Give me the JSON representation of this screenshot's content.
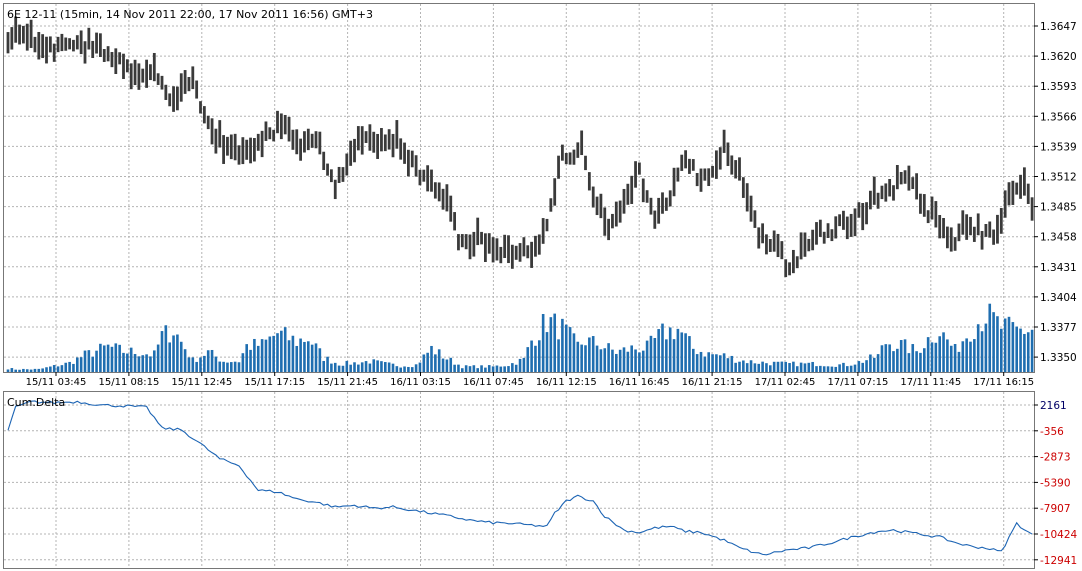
{
  "header": {
    "title": "6E 12-11 (15min, 14 Nov 2011 22:00, 17 Nov 2011 16:56) GMT+3"
  },
  "colors": {
    "price": "#3a3a3a",
    "volume": "#1f6eb0",
    "delta": "#1c64b4",
    "negative": "#cc0000",
    "positive": "#000066",
    "grid": "#b4b4b4"
  },
  "chart_data": [
    {
      "type": "bar",
      "subtype": "ohlc-bars-with-volume",
      "title": "6E 12-11 (15min, 14 Nov 2011 22:00, 17 Nov 2011 16:56) GMT+3",
      "y_tick_labels": [
        "1.3647",
        "1.3620",
        "1.3593",
        "1.3566",
        "1.3539",
        "1.3512",
        "1.3485",
        "1.3458",
        "1.3431",
        "1.3404",
        "1.3377",
        "1.3350"
      ],
      "x_tick_labels": [
        "15/11 03:45",
        "15/11 08:15",
        "15/11 12:45",
        "15/11 17:15",
        "15/11 21:45",
        "16/11 03:15",
        "16/11 07:45",
        "16/11 12:15",
        "16/11 16:45",
        "16/11 21:15",
        "17/11 02:45",
        "17/11 07:15",
        "17/11 11:45",
        "17/11 16:15"
      ],
      "ylim": [
        1.3341,
        1.3657
      ],
      "grid": true,
      "price_path": [
        [
          0,
          1.3629
        ],
        [
          4,
          1.3637
        ],
        [
          10,
          1.3624
        ],
        [
          20,
          1.3631
        ],
        [
          28,
          1.3616
        ],
        [
          33,
          1.3598
        ],
        [
          38,
          1.3608
        ],
        [
          43,
          1.3578
        ],
        [
          48,
          1.3598
        ],
        [
          53,
          1.3552
        ],
        [
          58,
          1.3538
        ],
        [
          63,
          1.3528
        ],
        [
          67,
          1.3546
        ],
        [
          72,
          1.3558
        ],
        [
          76,
          1.3537
        ],
        [
          80,
          1.3547
        ],
        [
          85,
          1.3504
        ],
        [
          88,
          1.3524
        ],
        [
          92,
          1.3545
        ],
        [
          97,
          1.354
        ],
        [
          101,
          1.3542
        ],
        [
          106,
          1.3515
        ],
        [
          110,
          1.351
        ],
        [
          114,
          1.3485
        ],
        [
          118,
          1.3452
        ],
        [
          122,
          1.3455
        ],
        [
          127,
          1.3447
        ],
        [
          132,
          1.344
        ],
        [
          137,
          1.3447
        ],
        [
          140,
          1.347
        ],
        [
          144,
          1.3528
        ],
        [
          149,
          1.3537
        ],
        [
          152,
          1.349
        ],
        [
          156,
          1.346
        ],
        [
          160,
          1.349
        ],
        [
          164,
          1.3513
        ],
        [
          168,
          1.3478
        ],
        [
          172,
          1.3495
        ],
        [
          176,
          1.3531
        ],
        [
          180,
          1.3505
        ],
        [
          186,
          1.3536
        ],
        [
          190,
          1.3513
        ],
        [
          194,
          1.347
        ],
        [
          198,
          1.3452
        ],
        [
          202,
          1.3434
        ],
        [
          206,
          1.344
        ],
        [
          210,
          1.3459
        ],
        [
          214,
          1.3462
        ],
        [
          218,
          1.3472
        ],
        [
          222,
          1.3478
        ],
        [
          226,
          1.3494
        ],
        [
          230,
          1.3503
        ],
        [
          234,
          1.3509
        ],
        [
          238,
          1.3485
        ],
        [
          242,
          1.3465
        ],
        [
          246,
          1.345
        ],
        [
          248,
          1.3472
        ],
        [
          252,
          1.3462
        ],
        [
          256,
          1.3458
        ],
        [
          260,
          1.3495
        ],
        [
          264,
          1.3506
        ],
        [
          266,
          1.3478
        ]
      ],
      "volume_path": [
        [
          0,
          4
        ],
        [
          2,
          3
        ],
        [
          8,
          3
        ],
        [
          16,
          10
        ],
        [
          20,
          19
        ],
        [
          26,
          28
        ],
        [
          30,
          23
        ],
        [
          34,
          22
        ],
        [
          38,
          19
        ],
        [
          40,
          40
        ],
        [
          43,
          47
        ],
        [
          48,
          13
        ],
        [
          52,
          22
        ],
        [
          56,
          12
        ],
        [
          60,
          12
        ],
        [
          62,
          29
        ],
        [
          66,
          30
        ],
        [
          70,
          43
        ],
        [
          75,
          34
        ],
        [
          78,
          38
        ],
        [
          82,
          16
        ],
        [
          86,
          9
        ],
        [
          90,
          10
        ],
        [
          94,
          12
        ],
        [
          98,
          9
        ],
        [
          102,
          7
        ],
        [
          106,
          8
        ],
        [
          110,
          26
        ],
        [
          114,
          15
        ],
        [
          118,
          6
        ],
        [
          122,
          6
        ],
        [
          126,
          6
        ],
        [
          130,
          8
        ],
        [
          134,
          14
        ],
        [
          136,
          35
        ],
        [
          140,
          57
        ],
        [
          144,
          48
        ],
        [
          148,
          29
        ],
        [
          150,
          35
        ],
        [
          154,
          30
        ],
        [
          158,
          22
        ],
        [
          162,
          26
        ],
        [
          166,
          27
        ],
        [
          170,
          43
        ],
        [
          174,
          48
        ],
        [
          178,
          26
        ],
        [
          182,
          20
        ],
        [
          186,
          18
        ],
        [
          190,
          13
        ],
        [
          194,
          11
        ],
        [
          198,
          10
        ],
        [
          202,
          9
        ],
        [
          206,
          9
        ],
        [
          210,
          9
        ],
        [
          214,
          8
        ],
        [
          218,
          8
        ],
        [
          222,
          12
        ],
        [
          226,
          18
        ],
        [
          228,
          33
        ],
        [
          232,
          30
        ],
        [
          236,
          23
        ],
        [
          240,
          41
        ],
        [
          242,
          46
        ],
        [
          246,
          24
        ],
        [
          250,
          48
        ],
        [
          254,
          64
        ],
        [
          258,
          50
        ],
        [
          262,
          46
        ],
        [
          266,
          47
        ]
      ],
      "y_scale_values": [
        1.3647,
        1.362,
        1.3593,
        1.3566,
        1.3539,
        1.3512,
        1.3485,
        1.3458,
        1.3431,
        1.3404,
        1.3377,
        1.335
      ]
    },
    {
      "type": "line",
      "title": "Cum.Delta",
      "series": [
        {
          "name": "Cum.Delta"
        }
      ],
      "y_tick_labels": [
        "2161",
        "-356",
        "-2873",
        "-5390",
        "-7907",
        "-10424",
        "-12941"
      ],
      "y_ticks": [
        2161,
        -356,
        -2873,
        -5390,
        -7907,
        -10424,
        -12941
      ],
      "ylim": [
        -13900,
        3800
      ],
      "grid": true,
      "values_path": [
        [
          0,
          -254
        ],
        [
          2,
          1934
        ],
        [
          6,
          2480
        ],
        [
          12,
          2388
        ],
        [
          18,
          2480
        ],
        [
          24,
          2161
        ],
        [
          30,
          2075
        ],
        [
          36,
          1934
        ],
        [
          40,
          -105
        ],
        [
          45,
          -257
        ],
        [
          50,
          -1618
        ],
        [
          55,
          -3089
        ],
        [
          60,
          -3746
        ],
        [
          65,
          -6157
        ],
        [
          70,
          -6309
        ],
        [
          75,
          -7003
        ],
        [
          80,
          -7327
        ],
        [
          85,
          -7790
        ],
        [
          90,
          -7634
        ],
        [
          95,
          -7907
        ],
        [
          100,
          -7790
        ],
        [
          105,
          -8097
        ],
        [
          110,
          -8401
        ],
        [
          115,
          -8706
        ],
        [
          120,
          -9081
        ],
        [
          125,
          -9306
        ],
        [
          130,
          -9383
        ],
        [
          135,
          -9534
        ],
        [
          140,
          -9684
        ],
        [
          142,
          -8401
        ],
        [
          145,
          -7202
        ],
        [
          148,
          -6733
        ],
        [
          152,
          -7202
        ],
        [
          155,
          -8706
        ],
        [
          160,
          -10049
        ],
        [
          164,
          -10275
        ],
        [
          168,
          -9836
        ],
        [
          172,
          -9684
        ],
        [
          176,
          -10161
        ],
        [
          180,
          -10275
        ],
        [
          186,
          -11030
        ],
        [
          190,
          -11780
        ],
        [
          196,
          -12468
        ],
        [
          202,
          -12010
        ],
        [
          208,
          -11780
        ],
        [
          214,
          -11258
        ],
        [
          220,
          -10649
        ],
        [
          226,
          -10161
        ],
        [
          230,
          -10049
        ],
        [
          234,
          -10275
        ],
        [
          238,
          -10501
        ],
        [
          242,
          -10724
        ],
        [
          246,
          -11258
        ],
        [
          250,
          -11628
        ],
        [
          254,
          -11780
        ],
        [
          258,
          -12157
        ],
        [
          262,
          -9383
        ],
        [
          265,
          -10275
        ],
        [
          266,
          -10424
        ]
      ]
    }
  ]
}
